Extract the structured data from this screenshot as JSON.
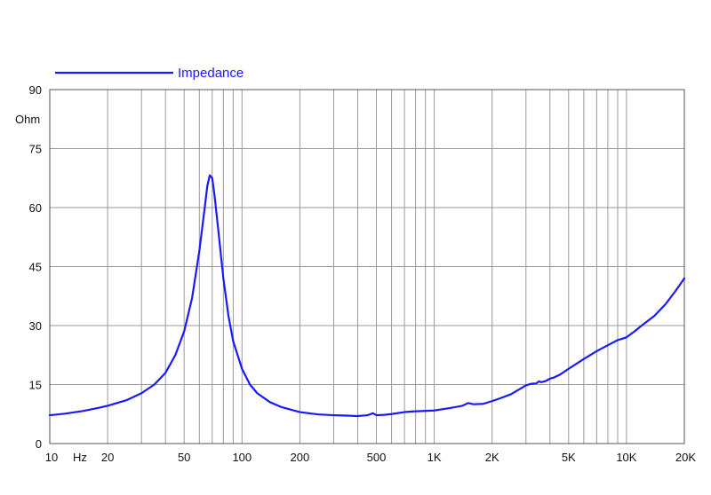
{
  "chart_data": {
    "type": "line",
    "x_scale": "log",
    "xlim": [
      10,
      20000
    ],
    "ylim": [
      0,
      90
    ],
    "ylabel": "Ohm",
    "xlabel": "Hz",
    "grid": true,
    "legend_placement": "top-left",
    "x_tick_labels": [
      {
        "value": 10,
        "label": "10"
      },
      {
        "value": 20,
        "label": "20"
      },
      {
        "value": 50,
        "label": "50"
      },
      {
        "value": 100,
        "label": "100"
      },
      {
        "value": 200,
        "label": "200"
      },
      {
        "value": 500,
        "label": "500"
      },
      {
        "value": 1000,
        "label": "1K"
      },
      {
        "value": 2000,
        "label": "2K"
      },
      {
        "value": 5000,
        "label": "5K"
      },
      {
        "value": 10000,
        "label": "10K"
      },
      {
        "value": 20000,
        "label": "20K"
      }
    ],
    "y_tick_labels": [
      {
        "value": 0,
        "label": "0"
      },
      {
        "value": 15,
        "label": "15"
      },
      {
        "value": 30,
        "label": "30"
      },
      {
        "value": 45,
        "label": "45"
      },
      {
        "value": 60,
        "label": "60"
      },
      {
        "value": 75,
        "label": "75"
      },
      {
        "value": 90,
        "label": "90"
      }
    ],
    "series": [
      {
        "name": "Impedance",
        "color": "#1a1aff",
        "x": [
          10,
          12,
          15,
          18,
          20,
          25,
          30,
          35,
          40,
          45,
          50,
          55,
          60,
          64,
          66,
          68,
          70,
          72,
          75,
          80,
          85,
          90,
          100,
          110,
          120,
          140,
          160,
          200,
          250,
          300,
          350,
          400,
          450,
          480,
          500,
          550,
          600,
          700,
          800,
          1000,
          1200,
          1400,
          1500,
          1600,
          1800,
          2000,
          2200,
          2500,
          3000,
          3200,
          3400,
          3500,
          3600,
          3800,
          4000,
          4200,
          4500,
          5000,
          6000,
          7000,
          8000,
          9000,
          10000,
          11000,
          12000,
          14000,
          16000,
          18000,
          20000
        ],
        "y": [
          7.2,
          7.6,
          8.3,
          9.1,
          9.6,
          11.0,
          12.8,
          15.0,
          18.0,
          22.5,
          28.5,
          37.0,
          49.0,
          60.0,
          65.5,
          68.2,
          67.5,
          63.0,
          55.0,
          42.0,
          32.5,
          26.0,
          19.0,
          15.0,
          12.8,
          10.5,
          9.3,
          8.0,
          7.4,
          7.2,
          7.1,
          7.0,
          7.2,
          7.7,
          7.2,
          7.3,
          7.5,
          8.0,
          8.2,
          8.4,
          9.0,
          9.6,
          10.3,
          10.0,
          10.1,
          10.8,
          11.5,
          12.5,
          14.8,
          15.2,
          15.3,
          15.8,
          15.6,
          15.9,
          16.5,
          16.8,
          17.5,
          19.0,
          21.5,
          23.5,
          25.0,
          26.3,
          27.0,
          28.5,
          30.0,
          32.5,
          35.5,
          38.8,
          42.0
        ]
      }
    ]
  }
}
